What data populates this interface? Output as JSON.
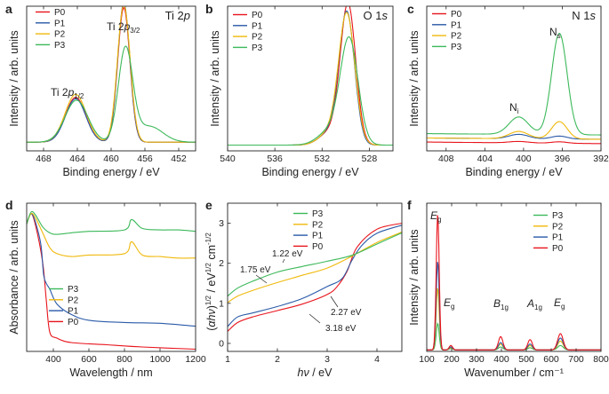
{
  "colors": {
    "P0": "#e8141c",
    "P1": "#2a5aa8",
    "P2": "#f0b90c",
    "P3": "#3cb95a"
  },
  "chart_data": [
    {
      "panel": "a",
      "type": "line",
      "element": "Ti 2p",
      "xlabel": "Binding energy / eV",
      "ylabel": "Intensity / arb. units",
      "xlim": [
        470,
        450
      ],
      "reverse_x": true,
      "ylim": [
        0,
        100
      ],
      "xticks": [
        468,
        464,
        460,
        456,
        452
      ],
      "xtick_labels": [
        "468",
        "464",
        "460",
        "456",
        "452"
      ],
      "legend": [
        "P0",
        "P1",
        "P2",
        "P3"
      ],
      "annotations": [
        {
          "base": "Ti 2",
          "ital": "p",
          "sub": "1/2"
        },
        {
          "base": "Ti 2",
          "ital": "p",
          "sub": "3/2"
        }
      ],
      "peak_model": true,
      "curves": [
        {
          "name": "P0",
          "base": 6,
          "peaks": [
            [
              464.2,
              1.2,
              31
            ],
            [
              458.5,
              0.72,
              93
            ]
          ]
        },
        {
          "name": "P1",
          "base": 6,
          "peaks": [
            [
              464.2,
              1.2,
              30
            ],
            [
              458.5,
              0.72,
              96
            ]
          ]
        },
        {
          "name": "P2",
          "base": 6,
          "peaks": [
            [
              464.2,
              1.25,
              33
            ],
            [
              458.5,
              0.75,
              95
            ]
          ]
        },
        {
          "name": "P3",
          "base": 6,
          "peaks": [
            [
              464.1,
              1.35,
              29
            ],
            [
              458.3,
              0.85,
              64
            ],
            [
              455.5,
              1.6,
              11
            ]
          ]
        }
      ]
    },
    {
      "panel": "b",
      "type": "line",
      "element": "O 1s",
      "xlabel": "Binding energy / eV",
      "ylabel": "Intensity / arb. units",
      "xlim": [
        540,
        526
      ],
      "reverse_x": true,
      "ylim": [
        0,
        100
      ],
      "xticks": [
        540,
        536,
        532,
        528
      ],
      "xtick_labels": [
        "540",
        "536",
        "532",
        "528"
      ],
      "legend": [
        "P0",
        "P1",
        "P2",
        "P3"
      ],
      "peak_model": true,
      "curves": [
        {
          "name": "P0",
          "base": 4,
          "peaks": [
            [
              529.8,
              0.65,
              96
            ],
            [
              531.3,
              0.9,
              9
            ]
          ]
        },
        {
          "name": "P1",
          "base": 4,
          "peaks": [
            [
              529.9,
              0.65,
              90
            ],
            [
              531.3,
              0.9,
              9
            ]
          ]
        },
        {
          "name": "P2",
          "base": 4,
          "peaks": [
            [
              529.9,
              0.68,
              89
            ],
            [
              531.3,
              0.9,
              9
            ]
          ]
        },
        {
          "name": "P3",
          "base": 4,
          "peaks": [
            [
              529.7,
              0.75,
              72
            ],
            [
              531.3,
              1.0,
              10
            ]
          ]
        }
      ]
    },
    {
      "panel": "c",
      "type": "line",
      "element": "N 1s",
      "xlabel": "Binding energy / eV",
      "ylabel": "Intensity / arb. units",
      "xlim": [
        410,
        392
      ],
      "reverse_x": true,
      "ylim": [
        0,
        100
      ],
      "xticks": [
        408,
        404,
        400,
        396,
        392
      ],
      "xtick_labels": [
        "408",
        "404",
        "400",
        "396",
        "392"
      ],
      "legend": [
        "P0",
        "P1",
        "P2",
        "P3"
      ],
      "annotations": [
        {
          "base": "N",
          "sub": "i"
        },
        {
          "base": "N",
          "sub": "s"
        }
      ],
      "peak_model": true,
      "curves": [
        {
          "name": "P0",
          "base": 5,
          "slope": 0.06,
          "peaks": [
            [
              400.5,
              1.0,
              1
            ],
            [
              396.3,
              0.8,
              1
            ]
          ]
        },
        {
          "name": "P1",
          "base": 8,
          "slope": 0.05,
          "peaks": [
            [
              400.5,
              1.0,
              3
            ],
            [
              396.3,
              0.8,
              2
            ]
          ]
        },
        {
          "name": "P2",
          "base": 8,
          "slope": 0.05,
          "peaks": [
            [
              400.5,
              1.0,
              5
            ],
            [
              396.3,
              0.8,
              12
            ]
          ]
        },
        {
          "name": "P3",
          "base": 11,
          "slope": 0.05,
          "peaks": [
            [
              400.5,
              1.0,
              12
            ],
            [
              396.3,
              0.8,
              70
            ]
          ]
        }
      ]
    },
    {
      "panel": "d",
      "type": "line",
      "xlabel": "Wavelength / nm",
      "ylabel": "Absorbance / arb. units",
      "xlim": [
        250,
        1200
      ],
      "ylim": [
        0,
        100
      ],
      "xticks": [
        400,
        600,
        800,
        1000,
        1200
      ],
      "xtick_labels": [
        "400",
        "600",
        "800",
        "1000",
        "1200"
      ],
      "legend": [
        "P3",
        "P2",
        "P1",
        "P0"
      ],
      "series": [
        {
          "name": "P0",
          "x": [
            250,
            275,
            300,
            340,
            360,
            380,
            420,
            500,
            700,
            900,
            1200
          ],
          "y": [
            86,
            93,
            85,
            60,
            35,
            13,
            9,
            6,
            4.5,
            3,
            1.5
          ]
        },
        {
          "name": "P1",
          "x": [
            250,
            275,
            300,
            330,
            345,
            360,
            380,
            420,
            500,
            600,
            800,
            1000,
            1200
          ],
          "y": [
            86,
            93,
            87,
            72,
            52,
            46,
            42,
            32,
            25,
            21,
            19.5,
            19,
            17
          ]
        },
        {
          "name": "P2",
          "x": [
            250,
            275,
            300,
            340,
            380,
            420,
            500,
            600,
            800,
            840,
            900,
            1000,
            1100,
            1200
          ],
          "y": [
            86,
            93,
            90,
            80,
            70,
            66,
            64,
            65,
            66,
            74,
            65,
            64,
            63,
            63
          ]
        },
        {
          "name": "P3",
          "x": [
            250,
            275,
            300,
            340,
            380,
            420,
            500,
            600,
            800,
            840,
            900,
            1000,
            1100,
            1200
          ],
          "y": [
            86,
            94,
            92,
            84,
            80,
            79,
            80,
            81,
            82,
            89,
            83,
            82,
            82,
            81
          ]
        }
      ]
    },
    {
      "panel": "e",
      "type": "line",
      "xlabel": "hν / eV",
      "ylabel": "(αhν)^1/2 / eV^1/2 cm^-1/2",
      "xlim": [
        1,
        4.5
      ],
      "ylim": [
        -0.2,
        3.5
      ],
      "xticks": [
        1,
        2,
        3,
        4
      ],
      "xtick_labels": [
        "1",
        "2",
        "3",
        "4"
      ],
      "yticks": [
        0,
        1,
        2,
        3
      ],
      "ytick_labels": [
        "0",
        "1",
        "2",
        "3"
      ],
      "legend": [
        "P3",
        "P2",
        "P1",
        "P0"
      ],
      "annotations": [
        "1.22 eV",
        "1.75 eV",
        "2.27 eV",
        "3.18 eV"
      ],
      "series": [
        {
          "name": "P0",
          "x": [
            1,
            1.2,
            1.5,
            2,
            2.5,
            3,
            3.2,
            3.4,
            3.6,
            4,
            4.5
          ],
          "y": [
            0.3,
            0.52,
            0.66,
            0.82,
            0.98,
            1.22,
            1.42,
            1.8,
            2.4,
            2.85,
            3.0
          ]
        },
        {
          "name": "P1",
          "x": [
            1,
            1.2,
            1.5,
            2,
            2.5,
            3,
            3.3,
            3.5,
            3.7,
            4,
            4.5
          ],
          "y": [
            0.42,
            0.66,
            0.76,
            0.92,
            1.12,
            1.42,
            1.62,
            2.08,
            2.45,
            2.75,
            2.95
          ]
        },
        {
          "name": "P2",
          "x": [
            1,
            1.2,
            1.5,
            2,
            2.5,
            3,
            3.5,
            4,
            4.5
          ],
          "y": [
            1.02,
            1.18,
            1.32,
            1.52,
            1.7,
            1.88,
            2.18,
            2.52,
            2.78
          ]
        },
        {
          "name": "P3",
          "x": [
            1,
            1.2,
            1.5,
            2,
            2.5,
            3,
            3.5,
            4,
            4.5
          ],
          "y": [
            1.18,
            1.38,
            1.55,
            1.78,
            1.92,
            2.05,
            2.2,
            2.48,
            2.76
          ]
        }
      ]
    },
    {
      "panel": "f",
      "type": "line",
      "xlabel": "Wavenumber / cm⁻¹",
      "ylabel": "Intensity / arb. units",
      "xlim": [
        100,
        800
      ],
      "ylim": [
        0,
        100
      ],
      "xticks": [
        100,
        200,
        300,
        400,
        500,
        600,
        700,
        800
      ],
      "xtick_labels": [
        "100",
        "200",
        "300",
        "400",
        "500",
        "600",
        "700",
        "800"
      ],
      "legend": [
        "P3",
        "P2",
        "P1",
        "P0"
      ],
      "annotations": [
        {
          "base": "E",
          "sub": "g"
        },
        {
          "base": "E",
          "sub": "g"
        },
        {
          "base": "B",
          "sub": "1g"
        },
        {
          "base": "A",
          "sub": "1g"
        },
        {
          "base": "E",
          "sub": "g"
        }
      ],
      "peak_model": true,
      "curves": [
        {
          "name": "P3",
          "base": 1,
          "peaks": [
            [
              144,
              6,
              18
            ],
            [
              197,
              7,
              1
            ],
            [
              397,
              9,
              2
            ],
            [
              515,
              9,
              1.5
            ],
            [
              637,
              11,
              3
            ]
          ]
        },
        {
          "name": "P2",
          "base": 1,
          "peaks": [
            [
              144,
              6,
              42
            ],
            [
              197,
              7,
              1.5
            ],
            [
              397,
              9,
              4
            ],
            [
              515,
              9,
              3
            ],
            [
              637,
              11,
              6
            ]
          ]
        },
        {
          "name": "P1",
          "base": 1,
          "peaks": [
            [
              144,
              6,
              60
            ],
            [
              197,
              7,
              2
            ],
            [
              397,
              9,
              5
            ],
            [
              515,
              9,
              4
            ],
            [
              637,
              11,
              8
            ]
          ]
        },
        {
          "name": "P0",
          "base": 1,
          "peaks": [
            [
              144,
              6,
              92
            ],
            [
              197,
              7,
              3
            ],
            [
              397,
              9,
              9
            ],
            [
              515,
              9,
              7
            ],
            [
              637,
              11,
              11
            ]
          ]
        }
      ]
    }
  ]
}
